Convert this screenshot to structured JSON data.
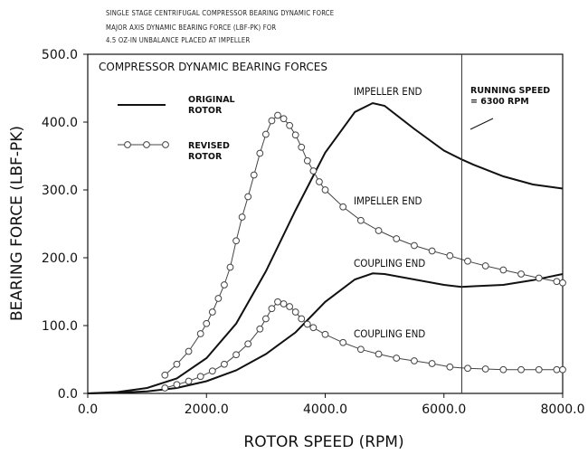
{
  "header": {
    "line1": "SINGLE STAGE CENTRIFUGAL COMPRESSOR BEARING DYNAMIC FORCE",
    "line2": "MAJOR AXIS DYNAMIC BEARING FORCE (LBF-PK) FOR",
    "line3": "4.5 OZ-IN UNBALANCE PLACED AT IMPELLER"
  },
  "chart_data": {
    "type": "line",
    "title": "COMPRESSOR DYNAMIC BEARING FORCES",
    "xlabel": "ROTOR SPEED (RPM)",
    "ylabel": "BEARING FORCE (LBF-PK)",
    "xlim": [
      0,
      8000
    ],
    "ylim": [
      0,
      500
    ],
    "x_ticks": [
      "0.0",
      "2000.0",
      "4000.0",
      "6000.0",
      "8000.0"
    ],
    "y_ticks": [
      "0.0",
      "100.0",
      "200.0",
      "300.0",
      "400.0",
      "500.0"
    ],
    "grid": false,
    "legend": {
      "placement": "top-left",
      "entries": [
        {
          "label_line1": "ORIGINAL",
          "label_line2": "ROTOR",
          "style": "solid"
        },
        {
          "label_line1": "REVISED",
          "label_line2": "ROTOR",
          "style": "circle-markers"
        }
      ]
    },
    "running_speed": {
      "x": 6300,
      "label_line1": "RUNNING SPEED",
      "label_line2": "= 6300 RPM"
    },
    "curve_labels": {
      "original_impeller": "IMPELLER END",
      "revised_impeller": "IMPELLER END",
      "original_coupling": "COUPLING END",
      "revised_coupling": "COUPLING END"
    },
    "series": [
      {
        "name": "ORIGINAL ROTOR",
        "end": "IMPELLER END",
        "style": "solid",
        "x": [
          0,
          500,
          1000,
          1500,
          2000,
          2500,
          3000,
          3500,
          4000,
          4500,
          4800,
          5000,
          5500,
          6000,
          6300,
          6500,
          7000,
          7500,
          8000
        ],
        "y": [
          0,
          2,
          8,
          22,
          52,
          103,
          180,
          270,
          355,
          415,
          428,
          424,
          390,
          358,
          345,
          337,
          320,
          308,
          302
        ]
      },
      {
        "name": "ORIGINAL ROTOR",
        "end": "COUPLING END",
        "style": "solid",
        "x": [
          0,
          500,
          1000,
          1500,
          2000,
          2500,
          3000,
          3500,
          4000,
          4500,
          4800,
          5000,
          5500,
          6000,
          6300,
          6500,
          7000,
          7500,
          8000
        ],
        "y": [
          0,
          1,
          3,
          8,
          18,
          34,
          58,
          90,
          135,
          168,
          177,
          176,
          168,
          160,
          157,
          158,
          160,
          167,
          176
        ]
      },
      {
        "name": "REVISED ROTOR",
        "end": "IMPELLER END",
        "style": "circle-markers",
        "x": [
          1300,
          1500,
          1700,
          1900,
          2000,
          2100,
          2200,
          2300,
          2400,
          2500,
          2600,
          2700,
          2800,
          2900,
          3000,
          3100,
          3200,
          3300,
          3400,
          3500,
          3600,
          3700,
          3800,
          3900,
          4000,
          4300,
          4600,
          4900,
          5200,
          5500,
          5800,
          6100,
          6400,
          6700,
          7000,
          7300,
          7600,
          7900,
          8000
        ],
        "y": [
          27,
          43,
          62,
          88,
          103,
          120,
          140,
          160,
          186,
          225,
          260,
          290,
          322,
          354,
          382,
          402,
          410,
          405,
          395,
          381,
          363,
          343,
          328,
          312,
          300,
          275,
          255,
          240,
          228,
          218,
          210,
          203,
          195,
          188,
          182,
          176,
          170,
          165,
          163
        ]
      },
      {
        "name": "REVISED ROTOR",
        "end": "COUPLING END",
        "style": "circle-markers",
        "x": [
          1300,
          1500,
          1700,
          1900,
          2100,
          2300,
          2500,
          2700,
          2900,
          3000,
          3100,
          3200,
          3300,
          3400,
          3500,
          3600,
          3700,
          3800,
          4000,
          4300,
          4600,
          4900,
          5200,
          5500,
          5800,
          6100,
          6400,
          6700,
          7000,
          7300,
          7600,
          7900,
          8000
        ],
        "y": [
          8,
          13,
          18,
          25,
          33,
          43,
          57,
          73,
          95,
          110,
          125,
          135,
          132,
          128,
          120,
          110,
          102,
          97,
          87,
          75,
          65,
          58,
          52,
          48,
          44,
          39,
          37,
          36,
          35,
          35,
          35,
          35,
          35
        ]
      }
    ]
  }
}
